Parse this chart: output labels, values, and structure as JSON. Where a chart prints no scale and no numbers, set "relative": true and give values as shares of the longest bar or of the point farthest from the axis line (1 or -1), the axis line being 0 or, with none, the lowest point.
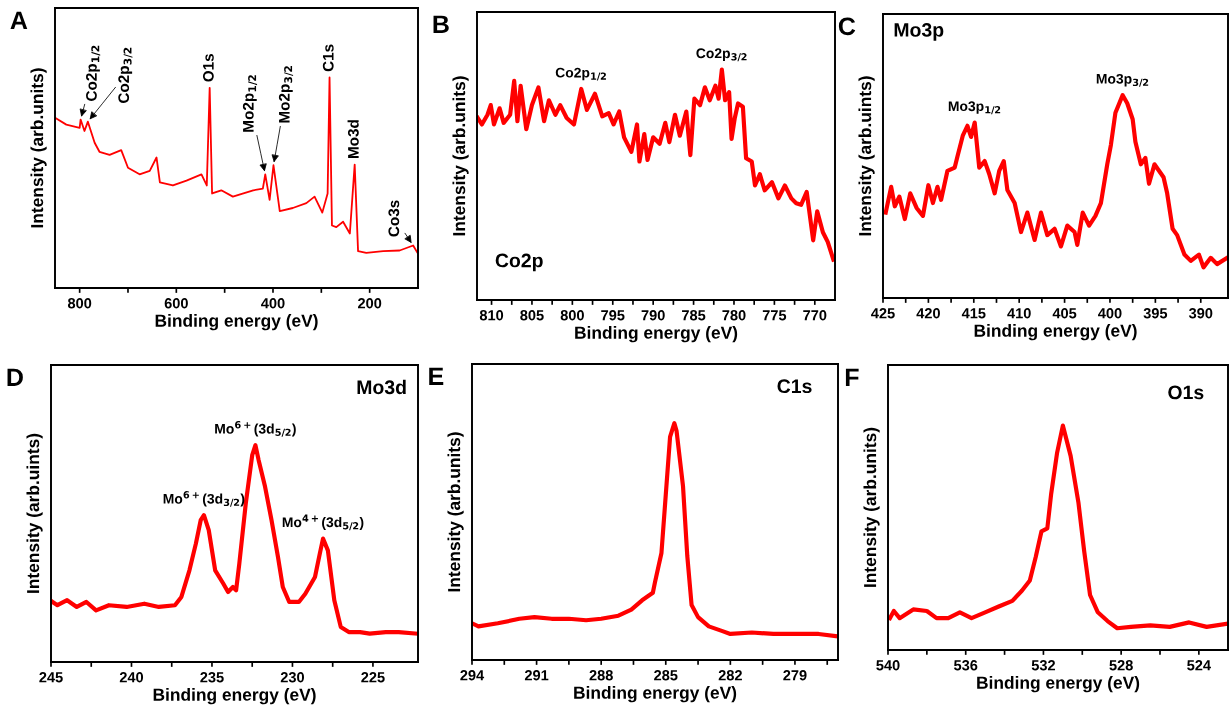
{
  "chart_data": [
    {
      "type": "line",
      "title": "A",
      "xlabel": "Binding energy (eV)",
      "ylabel": "Intensity (arb.units)",
      "relative": true,
      "xlim": [
        851,
        100
      ],
      "xticks": [
        800,
        {
          "value": 700,
          "label": null
        },
        600,
        {
          "value": 500,
          "label": null
        },
        400,
        {
          "value": 300,
          "label": null
        },
        200
      ],
      "x": [
        850,
        827.6,
        800,
        798,
        790,
        783,
        769,
        759,
        738,
        714,
        700,
        676,
        655,
        641,
        634,
        607,
        579,
        548,
        537,
        531,
        526,
        507,
        483,
        441,
        421,
        416,
        407,
        399,
        386,
        359,
        331,
        314,
        298,
        287,
        283,
        278,
        269,
        255,
        241,
        231,
        224,
        207,
        172,
        138,
        110,
        101
      ],
      "series": [
        {
          "color": "#ff0000",
          "values": [
            0.807,
            0.776,
            0.761,
            0.8,
            0.746,
            0.79,
            0.69,
            0.647,
            0.632,
            0.655,
            0.571,
            0.54,
            0.556,
            0.62,
            0.502,
            0.487,
            0.51,
            0.54,
            0.487,
            0.951,
            0.449,
            0.464,
            0.434,
            0.464,
            0.472,
            0.54,
            0.419,
            0.583,
            0.365,
            0.38,
            0.403,
            0.434,
            0.358,
            0.449,
            1.0,
            0.297,
            0.289,
            0.315,
            0.259,
            0.586,
            0.175,
            0.167,
            0.175,
            0.178,
            0.202,
            0.167
          ]
        }
      ],
      "annotations": [
        {
          "text": "Co2p$_{1/2}$",
          "x": 798,
          "y": 0.8
        },
        {
          "text": "Co2p$_{3/2}$",
          "x": 783,
          "y": 0.79
        },
        {
          "text": "O1s",
          "x": 531,
          "y": 0.951
        },
        {
          "text": "Mo2p$_{1/2}$",
          "x": 416,
          "y": 0.54
        },
        {
          "text": "Mo2p$_{3/2}$",
          "x": 399,
          "y": 0.583
        },
        {
          "text": "C1s",
          "x": 283,
          "y": 1.0
        },
        {
          "text": "Mo3d",
          "x": 231,
          "y": 0.586
        },
        {
          "text": "Co3s",
          "x": 110,
          "y": 0.202
        }
      ]
    },
    {
      "type": "line",
      "title": "B",
      "subtitle": "Co2p",
      "xlabel": "Binding energy (eV)",
      "ylabel": "Intensity (arb.units)",
      "relative": true,
      "xlim": [
        811.8,
        767.5
      ],
      "xticks": [
        810,
        {
          "value": 807.5,
          "label": null
        },
        805,
        {
          "value": 802.5,
          "label": null
        },
        800,
        {
          "value": 797.5,
          "label": null
        },
        795,
        {
          "value": 792.5,
          "label": null
        },
        790,
        {
          "value": 787.5,
          "label": null
        },
        785,
        {
          "value": 782.5,
          "label": null
        },
        780,
        {
          "value": 777.5,
          "label": null
        },
        775,
        {
          "value": 772.5,
          "label": null
        },
        770
      ],
      "x": [
        811.7,
        811.2,
        810.5,
        810.1,
        809.7,
        809.0,
        808.5,
        807.7,
        807.2,
        806.8,
        806.4,
        805.7,
        805.0,
        804.2,
        803.5,
        802.9,
        802.1,
        801.5,
        800.7,
        799.8,
        798.9,
        798.2,
        797.2,
        796.3,
        795.5,
        794.9,
        794.2,
        793.6,
        792.7,
        792.0,
        791.7,
        791.1,
        790.7,
        790.0,
        789.2,
        788.5,
        788.0,
        787.3,
        786.7,
        785.9,
        785.4,
        784.9,
        784.2,
        783.6,
        783.0,
        782.3,
        781.9,
        781.5,
        781.1,
        780.6,
        780.3,
        779.9,
        779.5,
        778.9,
        778.5,
        777.8,
        777.4,
        776.8,
        776.2,
        775.3,
        774.5,
        773.7,
        772.9,
        772.3,
        771.7,
        771.0,
        770.2,
        769.7,
        769.0,
        768.4,
        767.7
      ],
      "series": [
        {
          "color": "#ff0000",
          "values": [
            0.79,
            0.762,
            0.804,
            0.846,
            0.762,
            0.832,
            0.769,
            0.804,
            0.951,
            0.776,
            0.93,
            0.741,
            0.846,
            0.923,
            0.776,
            0.867,
            0.804,
            0.846,
            0.79,
            0.762,
            0.916,
            0.825,
            0.895,
            0.797,
            0.811,
            0.762,
            0.818,
            0.706,
            0.643,
            0.762,
            0.601,
            0.72,
            0.608,
            0.706,
            0.678,
            0.769,
            0.685,
            0.804,
            0.713,
            0.818,
            0.629,
            0.874,
            0.846,
            0.923,
            0.867,
            0.93,
            0.874,
            1.0,
            0.867,
            0.902,
            0.699,
            0.79,
            0.853,
            0.839,
            0.615,
            0.601,
            0.497,
            0.546,
            0.476,
            0.511,
            0.441,
            0.497,
            0.441,
            0.42,
            0.413,
            0.469,
            0.259,
            0.385,
            0.294,
            0.252,
            0.175
          ]
        }
      ],
      "annotations": [
        {
          "text": "Co2p$_{1/2}$",
          "x": 798.9,
          "y": 0.916
        },
        {
          "text": "Co2p$_{3/2}$",
          "x": 781.5,
          "y": 1.0
        }
      ]
    },
    {
      "type": "line",
      "title": "C",
      "subtitle": "Mo3p",
      "xlabel": "Binding energy (eV)",
      "ylabel": "Intensity (arb.uints)",
      "relative": true,
      "xlim": [
        425,
        387
      ],
      "xticks": [
        425,
        {
          "value": 422.5,
          "label": null
        },
        420,
        {
          "value": 417.5,
          "label": null
        },
        415,
        {
          "value": 412.5,
          "label": null
        },
        410,
        {
          "value": 407.5,
          "label": null
        },
        405,
        {
          "value": 402.5,
          "label": null
        },
        400,
        {
          "value": 397.5,
          "label": null
        },
        395,
        {
          "value": 392.5,
          "label": null
        },
        390
      ],
      "x": [
        424.7,
        424.1,
        423.7,
        423.2,
        422.6,
        422.0,
        421.3,
        420.6,
        420.0,
        419.5,
        419.0,
        418.6,
        417.9,
        417.1,
        416.8,
        416.2,
        415.7,
        415.3,
        414.9,
        414.4,
        413.8,
        413.3,
        412.7,
        412.2,
        411.7,
        411.3,
        410.5,
        409.8,
        409.1,
        408.3,
        407.6,
        406.9,
        406.1,
        405.4,
        404.7,
        403.9,
        403.6,
        403.0,
        402.3,
        401.6,
        401.0,
        400.3,
        399.9,
        399.4,
        398.6,
        398.1,
        397.5,
        397.2,
        396.6,
        396.1,
        395.7,
        395.1,
        394.6,
        394.1,
        393.7,
        393.1,
        392.6,
        391.8,
        391.1,
        390.2,
        389.7,
        388.9,
        388.2,
        387.1
      ],
      "series": [
        {
          "color": "#ff0000",
          "values": [
            0.421,
            0.548,
            0.452,
            0.5,
            0.389,
            0.516,
            0.444,
            0.405,
            0.556,
            0.468,
            0.548,
            0.484,
            0.627,
            0.643,
            0.698,
            0.802,
            0.849,
            0.794,
            0.865,
            0.643,
            0.675,
            0.611,
            0.516,
            0.627,
            0.675,
            0.532,
            0.468,
            0.325,
            0.421,
            0.286,
            0.421,
            0.31,
            0.341,
            0.254,
            0.357,
            0.325,
            0.262,
            0.421,
            0.357,
            0.405,
            0.468,
            0.659,
            0.754,
            0.913,
            1.0,
            0.96,
            0.881,
            0.77,
            0.659,
            0.69,
            0.563,
            0.659,
            0.627,
            0.595,
            0.516,
            0.341,
            0.31,
            0.214,
            0.183,
            0.214,
            0.151,
            0.198,
            0.167,
            0.198
          ]
        }
      ],
      "annotations": [
        {
          "text": "Mo3p$_{1/2}$",
          "x": 414.9,
          "y": 0.865
        },
        {
          "text": "Mo3p$_{3/2}$",
          "x": 398.6,
          "y": 1.0
        }
      ]
    },
    {
      "type": "line",
      "title": "D",
      "subtitle": "Mo3d",
      "xlabel": "Binding energy (eV)",
      "ylabel": "Intensity (arb.uints)",
      "relative": true,
      "xlim": [
        245,
        222.2
      ],
      "xticks": [
        245,
        {
          "value": 242.5,
          "label": null
        },
        240,
        {
          "value": 237.5,
          "label": null
        },
        235,
        {
          "value": 232.5,
          "label": null
        },
        230,
        {
          "value": 227.5,
          "label": null
        },
        225
      ],
      "x": [
        244.9,
        244.6,
        244.0,
        243.4,
        242.8,
        242.2,
        241.4,
        240.3,
        239.2,
        238.3,
        237.3,
        236.9,
        236.4,
        236.0,
        235.7,
        235.5,
        235.2,
        234.8,
        234.3,
        234.0,
        233.7,
        233.5,
        233.3,
        232.9,
        232.5,
        232.3,
        232.1,
        231.7,
        231.3,
        230.9,
        230.6,
        230.2,
        229.6,
        229.2,
        228.6,
        228.3,
        228.1,
        227.8,
        227.4,
        227.0,
        226.5,
        225.8,
        225.2,
        224.2,
        223.4,
        222.3
      ],
      "series": [
        {
          "color": "#ff0000",
          "values": [
            0.277,
            0.262,
            0.285,
            0.254,
            0.277,
            0.238,
            0.262,
            0.254,
            0.269,
            0.254,
            0.262,
            0.3,
            0.423,
            0.546,
            0.654,
            0.677,
            0.608,
            0.423,
            0.362,
            0.323,
            0.346,
            0.331,
            0.454,
            0.731,
            0.954,
            1.0,
            0.931,
            0.808,
            0.654,
            0.485,
            0.346,
            0.277,
            0.277,
            0.315,
            0.392,
            0.5,
            0.569,
            0.515,
            0.285,
            0.162,
            0.138,
            0.138,
            0.131,
            0.138,
            0.138,
            0.131
          ]
        }
      ],
      "annotations": [
        {
          "text": "Mo$^{6+}$(3d$_{3/2}$)",
          "x": 235.5,
          "y": 0.677
        },
        {
          "text": "Mo$^{6+}$(3d$_{5/2}$)",
          "x": 232.3,
          "y": 1.0
        },
        {
          "text": "Mo$^{4+}$(3d$_{5/2}$)",
          "x": 228.1,
          "y": 0.569
        }
      ]
    },
    {
      "type": "line",
      "title": "E",
      "subtitle": "C1s",
      "xlabel": "Binding energy (eV)",
      "ylabel": "Intensity (arb.units)",
      "relative": true,
      "xlim": [
        294,
        277
      ],
      "xticks": [
        294,
        {
          "value": 292.5,
          "label": null
        },
        291,
        {
          "value": 289.5,
          "label": null
        },
        288,
        {
          "value": 286.5,
          "label": null
        },
        285,
        {
          "value": 283.5,
          "label": null
        },
        282,
        {
          "value": 280.5,
          "label": null
        },
        279,
        {
          "value": 277.5,
          "label": null
        }
      ],
      "x": [
        294.0,
        293.7,
        292.8,
        291.8,
        291.1,
        290.3,
        289.5,
        288.7,
        288.0,
        287.2,
        286.6,
        286.1,
        285.6,
        285.5,
        285.2,
        285.0,
        284.8,
        284.6,
        284.5,
        284.2,
        284.0,
        283.8,
        283.5,
        283.0,
        282.4,
        282.0,
        281.0,
        280.0,
        279.0,
        277.9,
        277.1
      ],
      "series": [
        {
          "color": "#ff0000",
          "values": [
            0.155,
            0.142,
            0.155,
            0.174,
            0.181,
            0.174,
            0.174,
            0.168,
            0.174,
            0.187,
            0.213,
            0.252,
            0.284,
            0.329,
            0.452,
            0.697,
            0.942,
            1.0,
            0.968,
            0.735,
            0.439,
            0.232,
            0.181,
            0.142,
            0.123,
            0.11,
            0.116,
            0.11,
            0.11,
            0.11,
            0.101
          ]
        }
      ]
    },
    {
      "type": "line",
      "title": "F",
      "subtitle": "O1s",
      "xlabel": "Binding energy (eV)",
      "ylabel": "Intensity (arb.units)",
      "relative": true,
      "xlim": [
        540,
        522.5
      ],
      "xticks": [
        540,
        {
          "value": 538,
          "label": null
        },
        536,
        {
          "value": 534,
          "label": null
        },
        532,
        {
          "value": 530,
          "label": null
        },
        528,
        {
          "value": 526,
          "label": null
        },
        524
      ],
      "x": [
        539.9,
        539.7,
        539.4,
        538.7,
        538.0,
        537.5,
        536.9,
        536.3,
        535.7,
        535.0,
        534.3,
        533.6,
        533.1,
        532.7,
        532.4,
        532.1,
        531.8,
        531.6,
        531.3,
        531.0,
        530.6,
        530.2,
        529.9,
        529.6,
        529.2,
        528.7,
        528.2,
        527.5,
        526.5,
        525.5,
        524.5,
        523.6,
        522.6
      ],
      "series": [
        {
          "color": "#ff0000",
          "values": [
            0.142,
            0.174,
            0.142,
            0.181,
            0.174,
            0.142,
            0.142,
            0.168,
            0.142,
            0.168,
            0.194,
            0.219,
            0.265,
            0.31,
            0.413,
            0.529,
            0.542,
            0.697,
            0.877,
            1.0,
            0.865,
            0.658,
            0.439,
            0.245,
            0.168,
            0.129,
            0.097,
            0.103,
            0.11,
            0.103,
            0.123,
            0.103,
            0.116
          ]
        }
      ]
    }
  ]
}
